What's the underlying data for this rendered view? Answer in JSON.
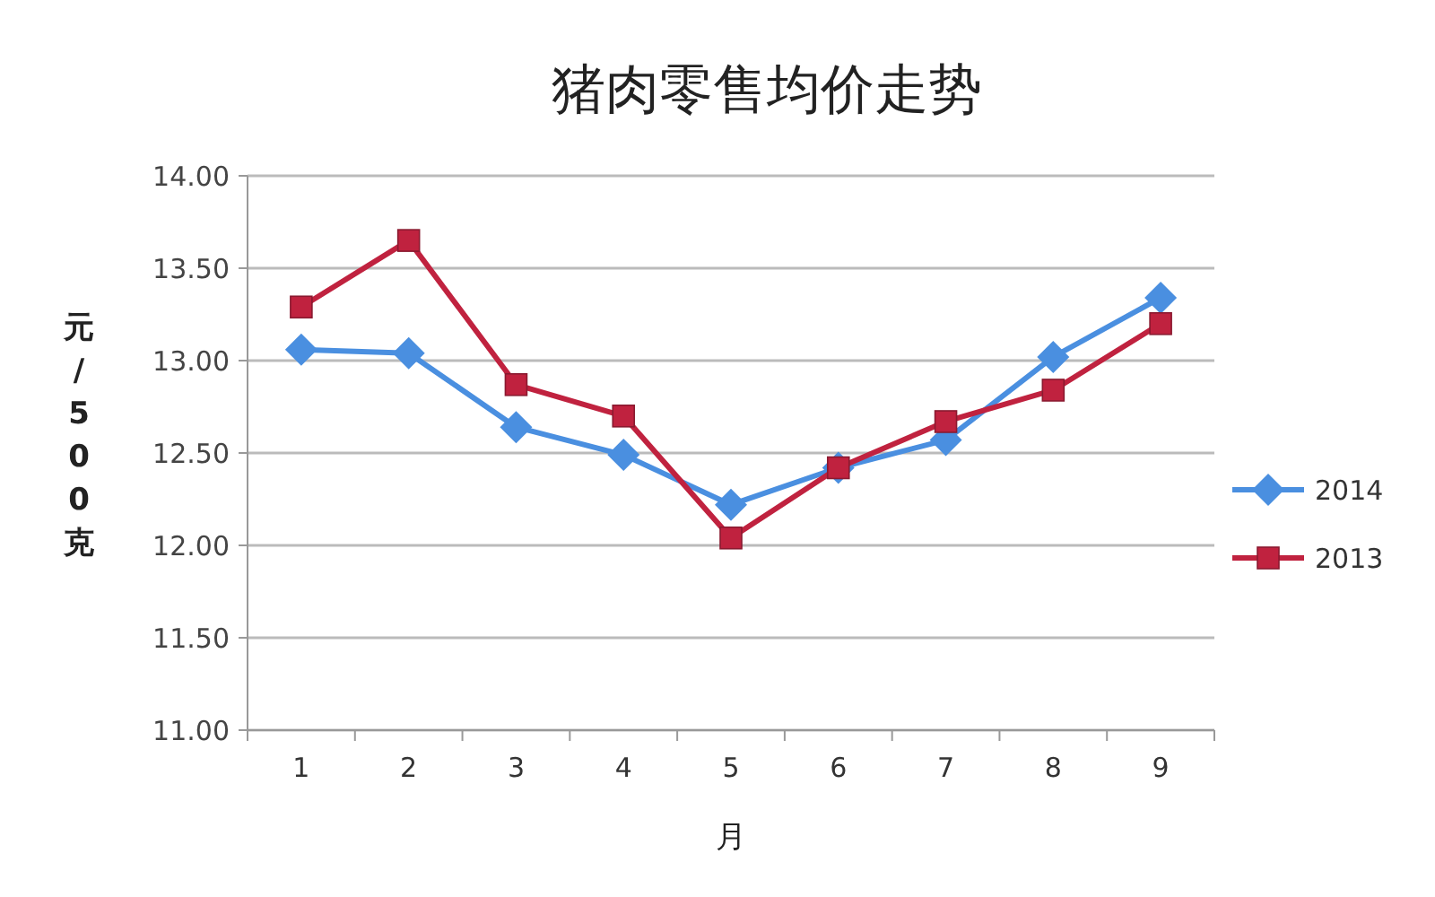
{
  "chart_data": {
    "type": "line",
    "title": "猪肉零售均价走势",
    "xlabel": "月",
    "ylabel": "元/500克",
    "categories": [
      "1",
      "2",
      "3",
      "4",
      "5",
      "6",
      "7",
      "8",
      "9"
    ],
    "series": [
      {
        "name": "2014",
        "color": "#4a8fe0",
        "marker": "diamond",
        "values": [
          13.06,
          13.04,
          12.64,
          12.49,
          12.22,
          12.42,
          12.57,
          13.02,
          13.34
        ]
      },
      {
        "name": "2013",
        "color": "#c0223f",
        "marker": "square",
        "values": [
          13.29,
          13.65,
          12.87,
          12.7,
          12.04,
          12.42,
          12.67,
          12.84,
          13.2
        ]
      }
    ],
    "ylim": [
      11,
      14
    ],
    "yticks": [
      {
        "value": 11,
        "label": "11.00"
      },
      {
        "value": 11.5,
        "label": "11.50"
      },
      {
        "value": 12,
        "label": "12.00"
      },
      {
        "value": 12.5,
        "label": "12.50"
      },
      {
        "value": 13,
        "label": "13.00"
      },
      {
        "value": 13.5,
        "label": "13.50"
      },
      {
        "value": 14,
        "label": "14.00"
      }
    ],
    "grid": "y",
    "legend": "right"
  }
}
